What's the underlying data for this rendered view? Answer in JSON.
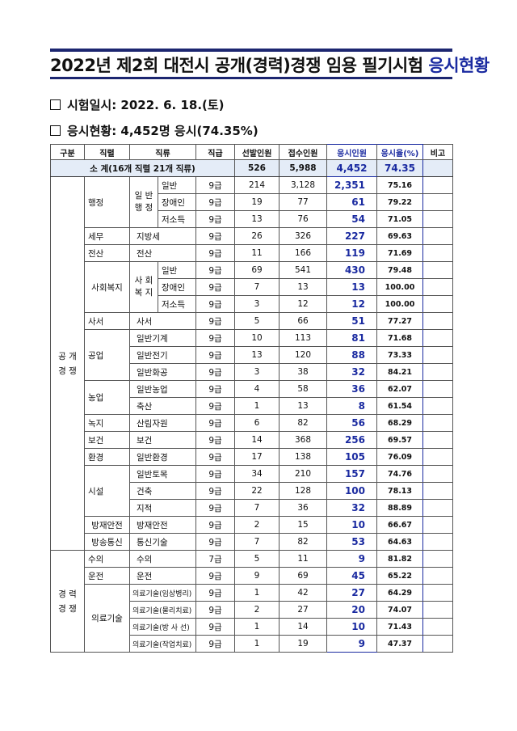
{
  "title": {
    "main": "2022년 제2회 대전시 공개(경력)경쟁 임용 필기시험 ",
    "highlight": "응시현황"
  },
  "bullets": [
    "시험일시: 2022. 6. 18.(토)",
    "응시현황: 4,452명 응시(74.35%)"
  ],
  "colors": {
    "rule": "#1c2670",
    "accent": "#1a2aa0",
    "subtotal_bg": "#e4ecf7"
  },
  "table": {
    "headers": [
      "구분",
      "직렬",
      "직류",
      "직급",
      "선발인원",
      "접수인원",
      "응시인원",
      "응시율(%)",
      "비고"
    ],
    "subtotal": {
      "label": "소 계(16개 직렬 21개 직류)",
      "selected": "526",
      "applied": "5,988",
      "attended": "4,452",
      "rate": "74.35",
      "note": ""
    },
    "sections": [
      {
        "name": "공 개\n경 쟁",
        "series": [
          {
            "name": "행정",
            "groups": [
              {
                "name": "일 반\n행 정",
                "items": [
                  {
                    "duty": "일반",
                    "grade": "9급",
                    "selected": "214",
                    "applied": "3,128",
                    "attended": "2,351",
                    "rate": "75.16"
                  },
                  {
                    "duty": "장애인",
                    "grade": "9급",
                    "selected": "19",
                    "applied": "77",
                    "attended": "61",
                    "rate": "79.22"
                  },
                  {
                    "duty": "저소득",
                    "grade": "9급",
                    "selected": "13",
                    "applied": "76",
                    "attended": "54",
                    "rate": "71.05"
                  }
                ]
              }
            ]
          },
          {
            "name": "세무",
            "items": [
              {
                "duty": "지방세",
                "grade": "9급",
                "selected": "26",
                "applied": "326",
                "attended": "227",
                "rate": "69.63"
              }
            ]
          },
          {
            "name": "전산",
            "items": [
              {
                "duty": "전산",
                "grade": "9급",
                "selected": "11",
                "applied": "166",
                "attended": "119",
                "rate": "71.69"
              }
            ]
          },
          {
            "name": "사회복지",
            "groups": [
              {
                "name": "사 회\n복 지",
                "items": [
                  {
                    "duty": "일반",
                    "grade": "9급",
                    "selected": "69",
                    "applied": "541",
                    "attended": "430",
                    "rate": "79.48"
                  },
                  {
                    "duty": "장애인",
                    "grade": "9급",
                    "selected": "7",
                    "applied": "13",
                    "attended": "13",
                    "rate": "100.00"
                  },
                  {
                    "duty": "저소득",
                    "grade": "9급",
                    "selected": "3",
                    "applied": "12",
                    "attended": "12",
                    "rate": "100.00"
                  }
                ]
              }
            ]
          },
          {
            "name": "사서",
            "items": [
              {
                "duty": "사서",
                "grade": "9급",
                "selected": "5",
                "applied": "66",
                "attended": "51",
                "rate": "77.27"
              }
            ]
          },
          {
            "name": "공업",
            "items": [
              {
                "duty": "일반기계",
                "grade": "9급",
                "selected": "10",
                "applied": "113",
                "attended": "81",
                "rate": "71.68"
              },
              {
                "duty": "일반전기",
                "grade": "9급",
                "selected": "13",
                "applied": "120",
                "attended": "88",
                "rate": "73.33"
              },
              {
                "duty": "일반화공",
                "grade": "9급",
                "selected": "3",
                "applied": "38",
                "attended": "32",
                "rate": "84.21"
              }
            ]
          },
          {
            "name": "농업",
            "items": [
              {
                "duty": "일반농업",
                "grade": "9급",
                "selected": "4",
                "applied": "58",
                "attended": "36",
                "rate": "62.07"
              },
              {
                "duty": "축산",
                "grade": "9급",
                "selected": "1",
                "applied": "13",
                "attended": "8",
                "rate": "61.54"
              }
            ]
          },
          {
            "name": "녹지",
            "items": [
              {
                "duty": "산림자원",
                "grade": "9급",
                "selected": "6",
                "applied": "82",
                "attended": "56",
                "rate": "68.29"
              }
            ]
          },
          {
            "name": "보건",
            "items": [
              {
                "duty": "보건",
                "grade": "9급",
                "selected": "14",
                "applied": "368",
                "attended": "256",
                "rate": "69.57"
              }
            ]
          },
          {
            "name": "환경",
            "items": [
              {
                "duty": "일반환경",
                "grade": "9급",
                "selected": "17",
                "applied": "138",
                "attended": "105",
                "rate": "76.09"
              }
            ]
          },
          {
            "name": "시설",
            "items": [
              {
                "duty": "일반토목",
                "grade": "9급",
                "selected": "34",
                "applied": "210",
                "attended": "157",
                "rate": "74.76"
              },
              {
                "duty": "건축",
                "grade": "9급",
                "selected": "22",
                "applied": "128",
                "attended": "100",
                "rate": "78.13"
              },
              {
                "duty": "지적",
                "grade": "9급",
                "selected": "7",
                "applied": "36",
                "attended": "32",
                "rate": "88.89"
              }
            ]
          },
          {
            "name": "방재안전",
            "items": [
              {
                "duty": "방재안전",
                "grade": "9급",
                "selected": "2",
                "applied": "15",
                "attended": "10",
                "rate": "66.67"
              }
            ]
          },
          {
            "name": "방송통신",
            "items": [
              {
                "duty": "통신기술",
                "grade": "9급",
                "selected": "7",
                "applied": "82",
                "attended": "53",
                "rate": "64.63"
              }
            ]
          }
        ]
      },
      {
        "name": "경 력\n경 쟁",
        "series": [
          {
            "name": "수의",
            "items": [
              {
                "duty": "수의",
                "grade": "7급",
                "selected": "5",
                "applied": "11",
                "attended": "9",
                "rate": "81.82"
              }
            ]
          },
          {
            "name": "운전",
            "items": [
              {
                "duty": "운전",
                "grade": "9급",
                "selected": "9",
                "applied": "69",
                "attended": "45",
                "rate": "65.22"
              }
            ]
          },
          {
            "name": "의료기술",
            "items": [
              {
                "duty": "의료기술(임상병리)",
                "grade": "9급",
                "selected": "1",
                "applied": "42",
                "attended": "27",
                "rate": "64.29"
              },
              {
                "duty": "의료기술(물리치료)",
                "grade": "9급",
                "selected": "2",
                "applied": "27",
                "attended": "20",
                "rate": "74.07"
              },
              {
                "duty": "의료기술(방 사 선)",
                "grade": "9급",
                "selected": "1",
                "applied": "14",
                "attended": "10",
                "rate": "71.43"
              },
              {
                "duty": "의료기술(작업치료)",
                "grade": "9급",
                "selected": "1",
                "applied": "19",
                "attended": "9",
                "rate": "47.37"
              }
            ]
          }
        ]
      }
    ]
  }
}
